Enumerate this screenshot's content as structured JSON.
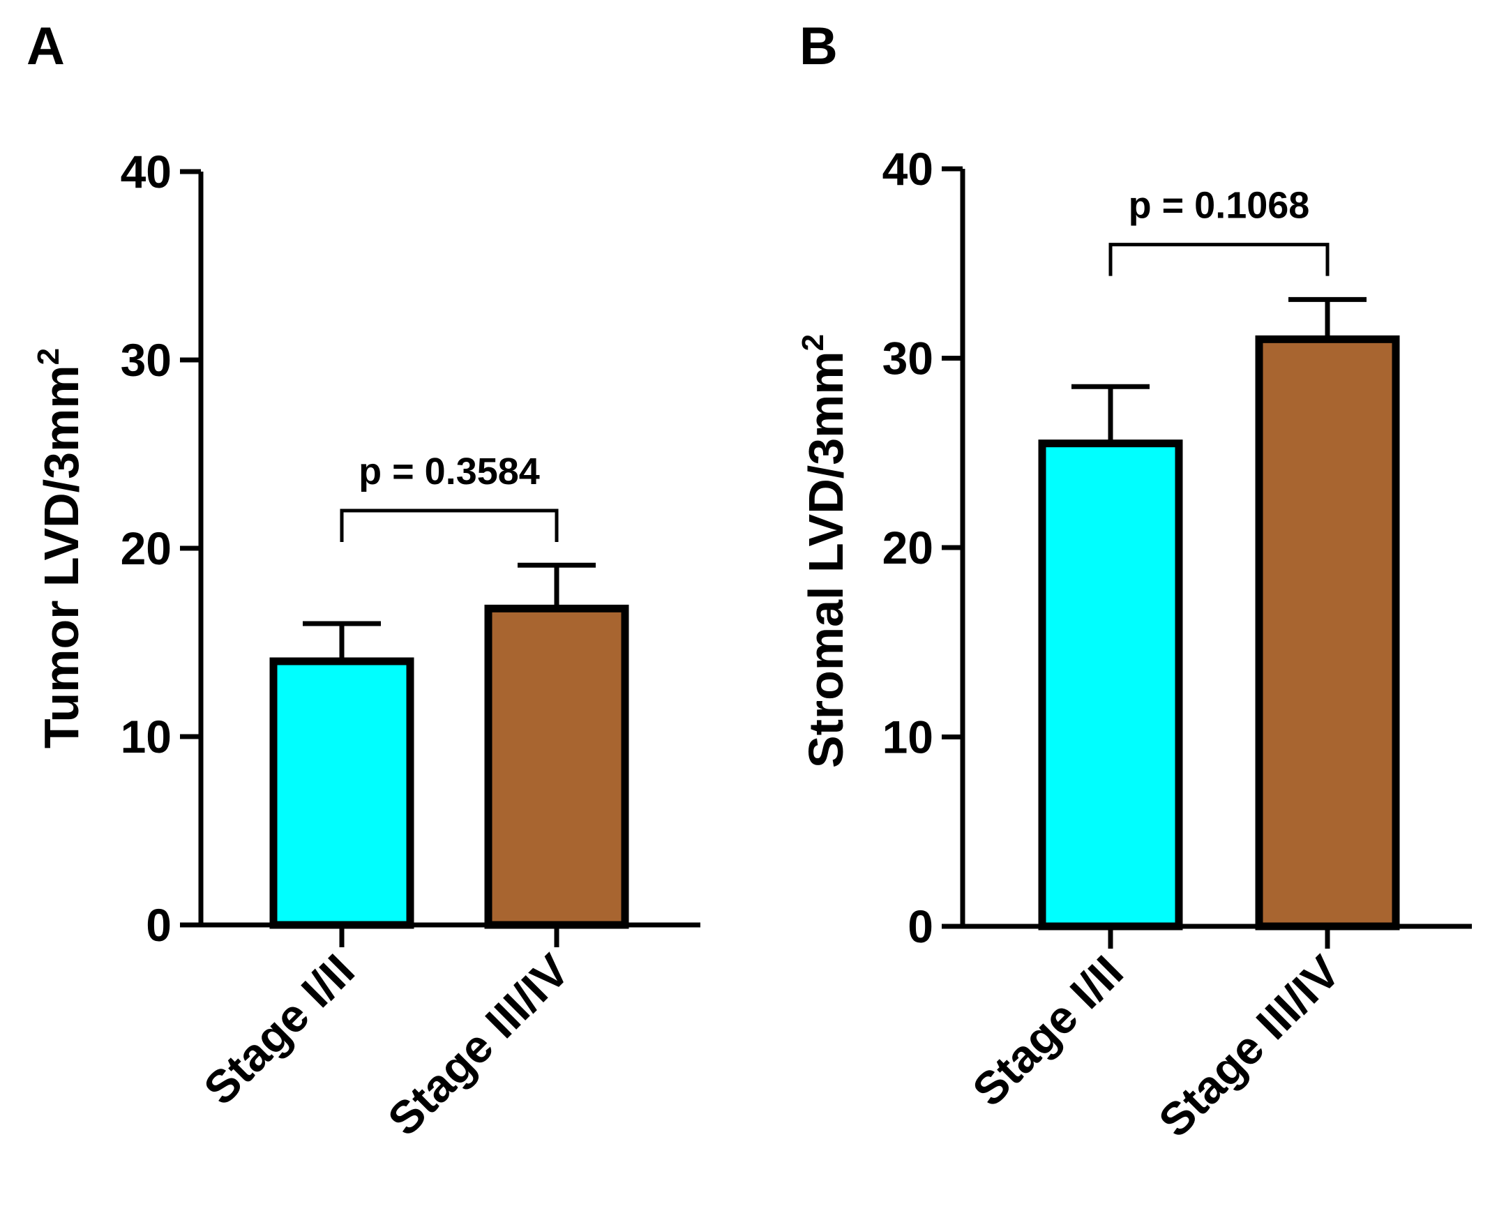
{
  "chart_data": [
    {
      "panel": "A",
      "type": "bar",
      "title": "",
      "xlabel": "",
      "ylabel": "Tumor LVD/3mm",
      "ylabel_sup": "2",
      "ylim": [
        0,
        40
      ],
      "yticks": [
        0,
        10,
        20,
        30,
        40
      ],
      "categories": [
        "Stage I/II",
        "Stage III/IV"
      ],
      "values": [
        14,
        16.8
      ],
      "errors": [
        2.0,
        2.3
      ],
      "colors": [
        "#00FFFF",
        "#A86530"
      ],
      "annotation": {
        "text": "p = 0.3584",
        "bracket_y": 22
      }
    },
    {
      "panel": "B",
      "type": "bar",
      "title": "",
      "xlabel": "",
      "ylabel": "Stromal LVD/3mm",
      "ylabel_sup": "2",
      "ylim": [
        0,
        40
      ],
      "yticks": [
        0,
        10,
        20,
        30,
        40
      ],
      "categories": [
        "Stage I/II",
        "Stage III/IV"
      ],
      "values": [
        25.5,
        31
      ],
      "errors": [
        3.0,
        2.1
      ],
      "colors": [
        "#00FFFF",
        "#A86530"
      ],
      "annotation": {
        "text": "p = 0.1068",
        "bracket_y": 36
      }
    }
  ]
}
